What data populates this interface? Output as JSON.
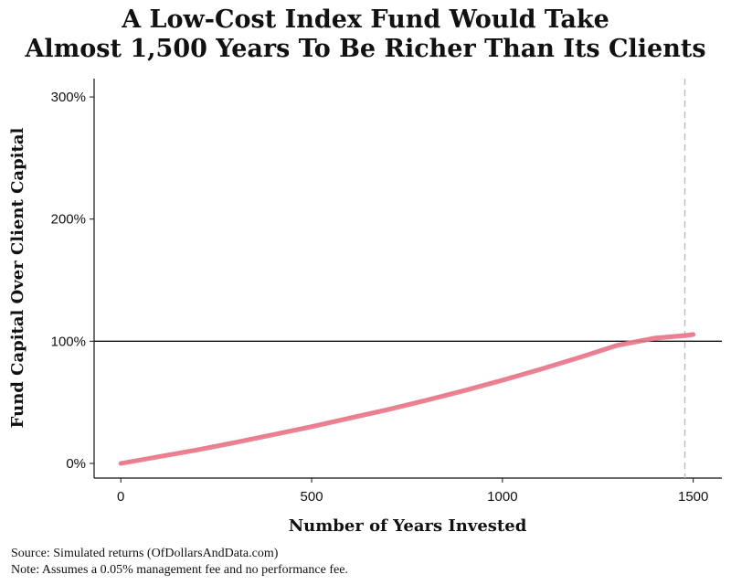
{
  "chart_data": {
    "type": "line",
    "title": [
      "A Low-Cost Index Fund Would Take",
      "Almost 1,500 Years To Be Richer Than Its Clients"
    ],
    "xlabel": "Number of Years Invested",
    "ylabel": "Fund Capital Over Client Capital",
    "xlim": [
      -70,
      1575
    ],
    "ylim": [
      -12,
      315
    ],
    "x_ticks": [
      0,
      500,
      1000,
      1500
    ],
    "x_tick_labels": [
      "0",
      "500",
      "1000",
      "1500"
    ],
    "y_ticks": [
      0,
      100,
      200,
      300
    ],
    "y_tick_labels": [
      "0%",
      "100%",
      "200%",
      "300%"
    ],
    "reference_lines": {
      "horizontal_y": 100,
      "vertical_x": 1478
    },
    "series_color": "#e8778a",
    "series": [
      {
        "x": [
          0,
          100,
          200,
          300,
          400,
          500,
          600,
          700,
          800,
          900,
          1000,
          1100,
          1200,
          1300,
          1400,
          1478,
          1500
        ],
        "y": [
          0,
          5.1,
          10.5,
          16.2,
          22.1,
          28.4,
          35.0,
          41.9,
          49.2,
          56.8,
          64.9,
          73.3,
          82.2,
          91.5,
          101.3,
          109.2,
          111.5
        ],
        "y_band": [
          0,
          5.4,
          11.0,
          17.0,
          23.5,
          30.0,
          37.0,
          44.0,
          51.5,
          59.5,
          68.0,
          77.0,
          86.5,
          96.5,
          102.5,
          104.5,
          105.5
        ]
      }
    ],
    "grid": false,
    "legend": "none"
  },
  "notes": {
    "source": "Source:  Simulated returns (OfDollarsAndData.com)",
    "note": "Note:  Assumes a 0.05% management fee and no performance fee."
  }
}
